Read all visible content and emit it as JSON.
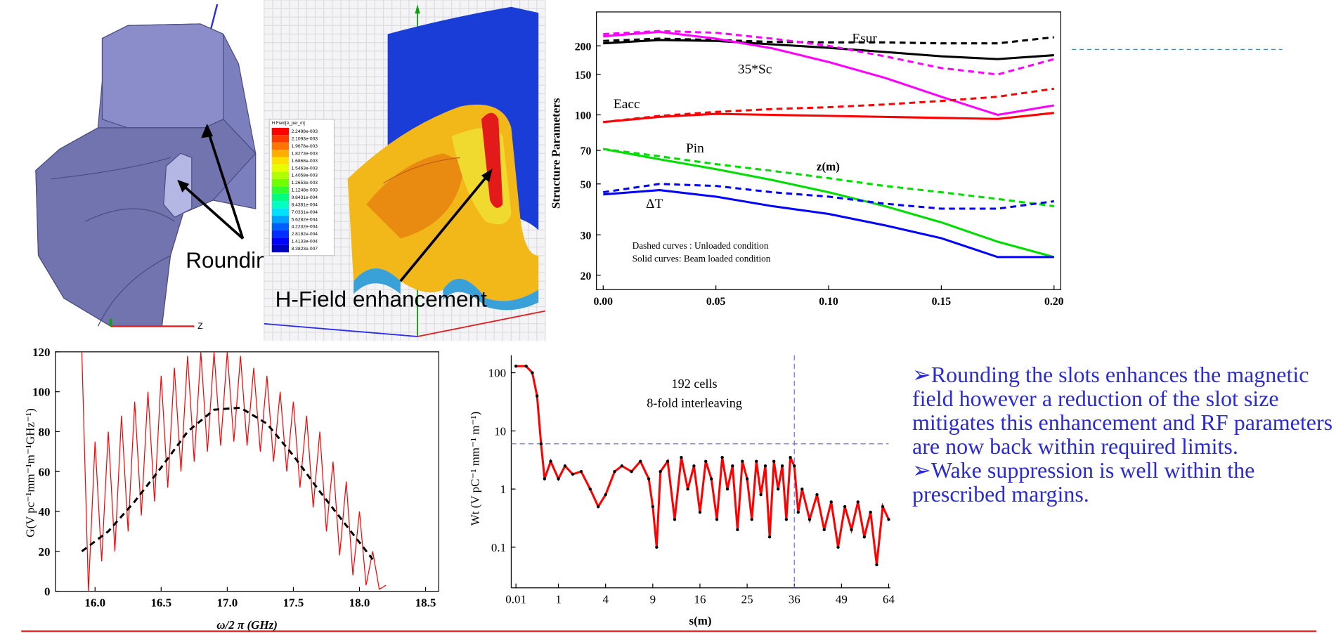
{
  "chart_data": [
    {
      "type": "line",
      "xlabel": "z(m)",
      "ylabel": "Structure Parameters",
      "yscale": "log",
      "xlim": [
        -0.003,
        0.203
      ],
      "ylim": [
        17.3,
        281
      ],
      "xticks": [
        {
          "value": 0,
          "label": "0.00"
        },
        {
          "value": 0.05,
          "label": "0.05"
        },
        {
          "value": 0.1,
          "label": "0.10"
        },
        {
          "value": 0.15,
          "label": "0.15"
        },
        {
          "value": 0.2,
          "label": "0.20"
        }
      ],
      "yticks": [
        20,
        30,
        50,
        70,
        100,
        150,
        200
      ],
      "x": [
        0,
        0.025,
        0.05,
        0.075,
        0.1,
        0.125,
        0.15,
        0.175,
        0.2
      ],
      "series": [
        {
          "color": "#000000",
          "dashed": false,
          "values": [
            205,
            212,
            210,
            203,
            196,
            188,
            180,
            175,
            182
          ]
        },
        {
          "color": "#000000",
          "dashed": true,
          "values": [
            210,
            215,
            212,
            208,
            207,
            207,
            205,
            205,
            218
          ]
        },
        {
          "color": "#ff00ff",
          "dashed": false,
          "values": [
            220,
            230,
            215,
            195,
            170,
            145,
            120,
            100,
            110
          ]
        },
        {
          "color": "#ff00ff",
          "dashed": true,
          "values": [
            225,
            232,
            228,
            215,
            200,
            180,
            160,
            150,
            175
          ]
        },
        {
          "color": "#ff0000",
          "dashed": false,
          "values": [
            93,
            98,
            101,
            100,
            99,
            98,
            97,
            96,
            102
          ]
        },
        {
          "color": "#ff0000",
          "dashed": true,
          "values": [
            93,
            99,
            103,
            106,
            108,
            111,
            115,
            120,
            130
          ]
        },
        {
          "color": "#00dd00",
          "dashed": false,
          "values": [
            71,
            64,
            58,
            52,
            46,
            40,
            34,
            28,
            24
          ]
        },
        {
          "color": "#00dd00",
          "dashed": true,
          "values": [
            71,
            66,
            61,
            57,
            53,
            49,
            46,
            43,
            40
          ]
        },
        {
          "color": "#0000ff",
          "dashed": false,
          "values": [
            45,
            47,
            44,
            40,
            37,
            33,
            29,
            24,
            24
          ]
        },
        {
          "color": "#0000ff",
          "dashed": true,
          "values": [
            46,
            50,
            49,
            46,
            44,
            41,
            39,
            39,
            42
          ]
        }
      ],
      "annotations": [
        "Esur",
        "35*Sc",
        "Eacc",
        "Pin",
        "ΔT",
        "Dashed curves : Unloaded condition",
        "Solid curves:  Beam loaded condition"
      ]
    },
    {
      "type": "line",
      "xlabel": "ω/2 π (GHz)",
      "ylabel": "G(V pc⁻¹mm⁻¹m⁻¹GHz⁻¹)",
      "xlim": [
        15.7,
        18.6
      ],
      "ylim": [
        0,
        120
      ],
      "xticks": [
        {
          "value": 16,
          "label": "16.0"
        },
        {
          "value": 16.5,
          "label": "16.5"
        },
        {
          "value": 17,
          "label": "17.0"
        },
        {
          "value": 17.5,
          "label": "17.5"
        },
        {
          "value": 18,
          "label": "18.0"
        },
        {
          "value": 18.5,
          "label": "18.5"
        }
      ],
      "yticks": [
        0,
        20,
        40,
        60,
        80,
        100,
        120
      ],
      "series": [
        {
          "color": "#ff0000",
          "dashed": false,
          "x": [
            15.9,
            15.95,
            16,
            16.05,
            16.1,
            16.15,
            16.2,
            16.25,
            16.3,
            16.35,
            16.4,
            16.45,
            16.5,
            16.55,
            16.6,
            16.65,
            16.7,
            16.75,
            16.8,
            16.85,
            16.9,
            16.95,
            17,
            17.05,
            17.1,
            17.15,
            17.2,
            17.25,
            17.3,
            17.35,
            17.4,
            17.45,
            17.5,
            17.55,
            17.6,
            17.65,
            17.7,
            17.75,
            17.8,
            17.85,
            17.9,
            17.95,
            18,
            18.05,
            18.1,
            18.15,
            18.2
          ],
          "values": [
            120,
            0,
            75,
            15,
            80,
            20,
            88,
            30,
            95,
            38,
            100,
            45,
            108,
            52,
            112,
            60,
            118,
            65,
            120,
            70,
            120,
            73,
            120,
            75,
            118,
            73,
            112,
            70,
            108,
            65,
            100,
            60,
            95,
            52,
            88,
            42,
            80,
            30,
            65,
            18,
            55,
            8,
            40,
            3,
            20,
            1,
            3
          ]
        },
        {
          "color": "#000000",
          "dashed": true,
          "x": [
            15.9,
            16.1,
            16.3,
            16.5,
            16.7,
            16.9,
            17.1,
            17.3,
            17.5,
            17.7,
            17.9,
            18.1
          ],
          "values": [
            20,
            30,
            45,
            62,
            80,
            91,
            92,
            84,
            68,
            50,
            33,
            16
          ]
        }
      ]
    },
    {
      "type": "line",
      "xlabel": "s(m)",
      "ylabel": "Wt (V pC⁻¹ mm⁻¹ m⁻¹)",
      "xscale": "sqrt",
      "yscale": "log",
      "xlim": [
        0,
        64
      ],
      "ylim": [
        0.02,
        200
      ],
      "xticks": [
        0.01,
        1,
        4,
        9,
        16,
        25,
        36,
        49,
        64
      ],
      "yticks": [
        0.1,
        1,
        10,
        100
      ],
      "hline": 6,
      "vline": 36,
      "ref_color": "#6b6bff",
      "series": [
        {
          "color": "#ff0000",
          "dashed": false,
          "markers": true,
          "marker_color": "#000000",
          "x": [
            0.01,
            0.1,
            0.2,
            0.3,
            0.4,
            0.5,
            0.7,
            1,
            1.3,
            1.7,
            2.2,
            2.8,
            3.4,
            4,
            4.8,
            5.5,
            6.5,
            7.5,
            8.5,
            9,
            9.5,
            10,
            11,
            12,
            13,
            14,
            15,
            16,
            17,
            18,
            19,
            20,
            21,
            22,
            23,
            24,
            25,
            26,
            27,
            28,
            29,
            30,
            31,
            32,
            33,
            34,
            35,
            36,
            37,
            38,
            40,
            42,
            44,
            46,
            48,
            50,
            52,
            54,
            56,
            58,
            60,
            62,
            64
          ],
          "values": [
            130,
            130,
            100,
            40,
            6,
            1.5,
            3,
            1.5,
            2.5,
            1.8,
            2,
            1,
            0.5,
            0.8,
            2,
            2.5,
            2,
            3,
            1.5,
            0.5,
            0.1,
            2,
            3,
            0.3,
            3.5,
            1,
            2.5,
            0.4,
            3,
            1.5,
            0.3,
            3.5,
            1,
            2.5,
            0.2,
            3,
            1.5,
            0.3,
            3,
            0.8,
            2.5,
            0.15,
            3,
            1,
            2.5,
            0.3,
            3.5,
            2.5,
            0.4,
            1,
            0.3,
            0.8,
            0.2,
            0.6,
            0.1,
            0.5,
            0.2,
            0.6,
            0.15,
            0.4,
            0.05,
            0.5,
            0.3
          ]
        }
      ],
      "annotations": [
        "192 cells",
        "8-fold interleaving"
      ]
    }
  ],
  "figures": {
    "rounding_label": "Rounding",
    "hfield_label": "H-Field enhancement",
    "colorbar": {
      "title": "H Field[A_per_m]",
      "labels": [
        "2.2498e-003",
        "2.1093e-003",
        "1.9678e-003",
        "1.8273e-003",
        "1.6868e-003",
        "1.5463e-003",
        "1.4058e-003",
        "1.2653e-003",
        "1.1248e-003",
        "9.8431e-004",
        "8.4381e-004",
        "7.0331e-004",
        "5.6282e-004",
        "4.2232e-004",
        "2.8182e-004",
        "1.4133e-004",
        "8.3823e-007"
      ]
    },
    "axis_label": "Z"
  },
  "bullets": [
    "➢Rounding the slots enhances the magnetic field however a reduction of the slot size mitigates this enhancement and RF parameters are now back within required limits.",
    "➢Wake  suppression is well within the prescribed margins."
  ]
}
